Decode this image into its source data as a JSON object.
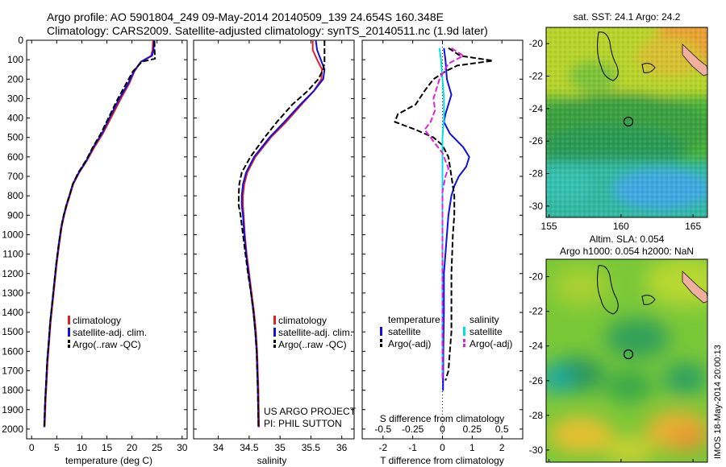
{
  "title_line1": "Argo profile: AO 5901804_249 09-May-2014 20140509_139 24.654S 160.348E",
  "title_line2": "Climatology: CARS2009. Satellite-adjusted climatology: synTS_20140511.nc (1.9d later)",
  "side_stamp": "IMOS 18-May-2014 20:00:13",
  "colors": {
    "climatology": "#e02020",
    "satellite": "#1010e0",
    "argo": "#000000",
    "satellite_s": "#00e0e0",
    "argo_s": "#e020e0"
  },
  "chart_data": [
    {
      "type": "line",
      "xlabel": "temperature (deg C)",
      "xlim": [
        -1,
        31
      ],
      "xticks": [
        "0",
        "5",
        "10",
        "15",
        "20",
        "25",
        "30"
      ],
      "ylim": [
        0,
        2050
      ],
      "yticks": [
        "0",
        "100",
        "200",
        "300",
        "400",
        "500",
        "600",
        "700",
        "800",
        "900",
        "1000",
        "1100",
        "1200",
        "1300",
        "1400",
        "1500",
        "1600",
        "1700",
        "1800",
        "1900",
        "2000"
      ],
      "legend": [
        "climatology",
        "satellite-adj. clim.",
        "Argo(..raw -QC)"
      ],
      "series": [
        {
          "name": "climatology",
          "style": "solid",
          "color": "#e02020",
          "x": [
            24.2,
            24.1,
            23.8,
            21.8,
            20.5,
            19.5,
            17.8,
            15.8,
            14.2,
            12.5,
            11.0,
            9.5,
            8.3,
            7.6,
            7.0,
            6.5,
            6.0,
            5.5,
            5.0,
            4.6,
            4.2,
            3.8,
            3.5,
            3.2,
            3.0,
            2.8,
            2.6
          ],
          "y": [
            0,
            50,
            80,
            110,
            160,
            220,
            300,
            400,
            480,
            550,
            620,
            680,
            740,
            800,
            850,
            900,
            960,
            1050,
            1150,
            1250,
            1350,
            1450,
            1550,
            1650,
            1750,
            1850,
            1990
          ]
        },
        {
          "name": "satellite-adj. clim.",
          "style": "solid",
          "color": "#1010e0",
          "x": [
            24.4,
            24.3,
            24.0,
            21.8,
            20.4,
            19.3,
            17.5,
            15.5,
            14.0,
            12.3,
            10.9,
            9.4,
            8.2,
            7.5,
            6.9,
            6.4,
            5.9,
            5.4,
            4.9,
            4.5,
            4.1,
            3.7,
            3.4,
            3.1,
            2.9,
            2.7,
            2.5
          ],
          "y": [
            0,
            50,
            80,
            110,
            160,
            220,
            300,
            400,
            480,
            550,
            620,
            680,
            740,
            800,
            850,
            900,
            960,
            1050,
            1150,
            1250,
            1350,
            1450,
            1550,
            1650,
            1750,
            1850,
            1990
          ]
        },
        {
          "name": "Argo(..raw -QC)",
          "style": "dashed",
          "color": "#000000",
          "x": [
            24.5,
            24.5,
            24.6,
            22.0,
            20.2,
            18.9,
            17.2,
            15.3,
            13.8,
            12.2,
            10.8,
            9.3,
            8.2,
            7.5,
            6.9,
            6.4,
            5.9,
            5.4,
            4.9,
            4.5,
            4.1,
            3.7,
            3.4,
            3.1,
            2.9,
            2.7,
            2.5
          ],
          "y": [
            5,
            50,
            95,
            110,
            160,
            220,
            300,
            400,
            480,
            550,
            620,
            680,
            740,
            800,
            850,
            900,
            960,
            1050,
            1150,
            1250,
            1350,
            1450,
            1550,
            1650,
            1750,
            1850,
            1990
          ]
        }
      ]
    },
    {
      "type": "line",
      "xlabel": "salinity",
      "xlim": [
        33.6,
        36.2
      ],
      "xticks": [
        "34",
        "34.5",
        "35",
        "35.5",
        "36"
      ],
      "ylim": [
        0,
        2050
      ],
      "legend": [
        "climatology",
        "satellite-adj. clim.",
        "Argo(..raw -QC)"
      ],
      "annotation": [
        "US ARGO PROJECT",
        "PI: PHIL SUTTON"
      ],
      "series": [
        {
          "name": "climatology",
          "style": "solid",
          "color": "#e02020",
          "x": [
            35.53,
            35.53,
            35.6,
            35.68,
            35.67,
            35.55,
            35.35,
            35.1,
            34.85,
            34.6,
            34.47,
            34.42,
            34.4,
            34.4,
            34.41,
            34.43,
            34.46,
            34.5,
            34.54,
            34.58,
            34.61,
            34.63,
            34.65,
            34.66
          ],
          "y": [
            0,
            50,
            100,
            150,
            200,
            260,
            330,
            420,
            500,
            600,
            680,
            740,
            800,
            850,
            900,
            1000,
            1100,
            1200,
            1300,
            1400,
            1500,
            1600,
            1800,
            1990
          ]
        },
        {
          "name": "satellite-adj. clim.",
          "style": "solid",
          "color": "#1010e0",
          "x": [
            35.58,
            35.6,
            35.66,
            35.72,
            35.7,
            35.55,
            35.33,
            35.07,
            34.83,
            34.58,
            34.45,
            34.4,
            34.38,
            34.38,
            34.4,
            34.42,
            34.45,
            34.49,
            34.53,
            34.57,
            34.6,
            34.62,
            34.64,
            34.65
          ],
          "y": [
            0,
            50,
            100,
            150,
            200,
            260,
            330,
            420,
            500,
            600,
            680,
            740,
            800,
            850,
            900,
            1000,
            1100,
            1200,
            1300,
            1400,
            1500,
            1600,
            1800,
            1990
          ]
        },
        {
          "name": "Argo(..raw -QC)",
          "style": "dashed",
          "color": "#000000",
          "x": [
            35.72,
            35.72,
            35.72,
            35.7,
            35.62,
            35.45,
            35.2,
            34.95,
            34.75,
            34.52,
            34.38,
            34.34,
            34.33,
            34.33,
            34.36,
            34.4,
            34.44,
            34.48,
            34.53,
            34.57,
            34.6,
            34.62,
            34.64,
            34.65
          ],
          "y": [
            0,
            50,
            110,
            150,
            200,
            260,
            330,
            420,
            500,
            600,
            680,
            740,
            800,
            850,
            900,
            1000,
            1100,
            1200,
            1300,
            1400,
            1500,
            1600,
            1800,
            1990
          ]
        }
      ]
    },
    {
      "type": "line",
      "xlabel": "T difference from climatology",
      "xlabel_top": "S difference from climatology",
      "xlim": [
        -2.7,
        2.7
      ],
      "xticks": [
        "-2",
        "-1",
        "0",
        "1",
        "2"
      ],
      "xticks_top": [
        "-0.5",
        "-0.25",
        "0",
        "0.25",
        "0.5"
      ],
      "ylim": [
        0,
        2050
      ],
      "legend_heading_t": "temperature",
      "legend_heading_s": "salinity",
      "legend_t": [
        "satellite",
        "Argo(-adj)"
      ],
      "legend_s": [
        "satellite",
        "Argo(-adj)"
      ],
      "series": [
        {
          "name": "temperature satellite",
          "style": "solid",
          "color": "#1010e0",
          "x": [
            0.05,
            0.1,
            0.15,
            0.3,
            0.2,
            0.1,
            0.05,
            0.25,
            0.7,
            0.9,
            0.8,
            0.55,
            0.4,
            0.3,
            0.25,
            0.2,
            0.15,
            0.1,
            0.05,
            0.05,
            0.03,
            0.02,
            0.02
          ],
          "y": [
            40,
            100,
            200,
            280,
            330,
            380,
            420,
            480,
            550,
            600,
            650,
            700,
            750,
            800,
            850,
            900,
            1000,
            1100,
            1200,
            1400,
            1600,
            1800,
            1740
          ]
        },
        {
          "name": "temperature Argo(-adj)",
          "style": "dashed",
          "color": "#000000",
          "x": [
            0.2,
            0.6,
            1.7,
            0.5,
            0.1,
            -0.3,
            -0.6,
            -0.9,
            -1.5,
            -1.6,
            -0.9,
            -0.3,
            0.0,
            0.2,
            0.3,
            0.4,
            0.4,
            0.35,
            0.3,
            0.3,
            0.3,
            0.25,
            0.2,
            0.1
          ],
          "y": [
            40,
            80,
            105,
            130,
            160,
            200,
            260,
            330,
            380,
            420,
            460,
            500,
            540,
            600,
            700,
            800,
            900,
            1000,
            1200,
            1400,
            1500,
            1600,
            1700,
            1750
          ]
        },
        {
          "name": "salinity satellite",
          "style": "solid",
          "color": "#00e0e0",
          "x": [
            -0.1,
            -0.05,
            0.0,
            0.05,
            0.05,
            0.0,
            0.0,
            0.0,
            0.0,
            0.0,
            0.0,
            0.0
          ],
          "y": [
            40,
            100,
            200,
            300,
            400,
            500,
            700,
            900,
            1100,
            1300,
            1500,
            1740
          ]
        },
        {
          "name": "salinity Argo(-adj)",
          "style": "dashed",
          "color": "#e020e0",
          "x": [
            0.3,
            0.7,
            0.2,
            -0.1,
            -0.3,
            -0.25,
            -0.4,
            -0.6,
            -0.3,
            0.0,
            0.1,
            0.2,
            0.1,
            0.0,
            0.0,
            0.0,
            0.0
          ],
          "y": [
            40,
            80,
            120,
            200,
            300,
            360,
            420,
            460,
            520,
            580,
            620,
            660,
            700,
            780,
            900,
            1100,
            1740
          ]
        }
      ]
    },
    {
      "type": "heatmap",
      "title": "sat. SST: 24.1  Argo: 24.2",
      "xticks": [
        "155",
        "160",
        "165"
      ],
      "yticks": [
        "-20",
        "-22",
        "-24",
        "-26",
        "-28",
        "-30"
      ],
      "xlim": [
        154.8,
        166.0
      ],
      "ylim": [
        -30.7,
        -19.0
      ],
      "marker": {
        "lon": 160.3,
        "lat": -24.65
      }
    },
    {
      "type": "heatmap",
      "title_line1": "Altim. SLA: 0.054",
      "title_line2": "Argo h1000: 0.054  h2000: NaN",
      "xticks": [
        "155",
        "160",
        "165"
      ],
      "yticks": [
        "-20",
        "-22",
        "-24",
        "-26",
        "-28",
        "-30"
      ],
      "xlim": [
        154.8,
        166.0
      ],
      "ylim": [
        -30.7,
        -19.0
      ],
      "marker": {
        "lon": 160.3,
        "lat": -24.65
      }
    }
  ]
}
